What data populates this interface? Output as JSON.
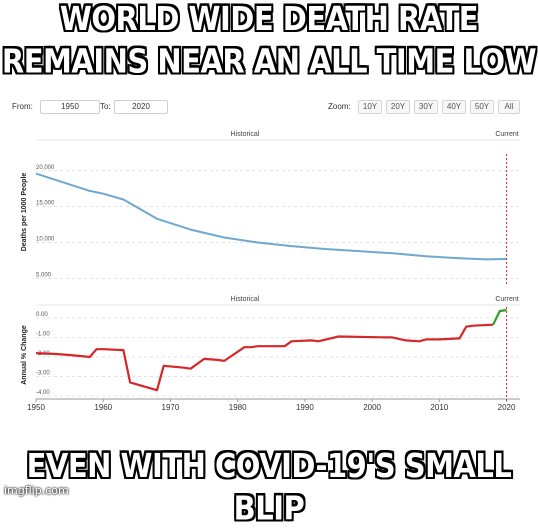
{
  "meme": {
    "top_caption_line1": "WORLD WIDE DEATH RATE",
    "top_caption_line2": "REMAINS NEAR AN ALL TIME LOW",
    "bottom_caption": "EVEN WITH COVID-19'S SMALL BLIP",
    "watermark": "imgflip.com"
  },
  "controls": {
    "from_label": "From:",
    "from_value": "1950",
    "to_label": "To:",
    "to_value": "2020",
    "zoom_label": "Zoom:",
    "zoom_options": [
      "10Y",
      "20Y",
      "30Y",
      "40Y",
      "50Y",
      "All"
    ]
  },
  "colors": {
    "rate_line": "#6fa8cf",
    "change_line": "#d62728",
    "change_line_recent": "#2ca02c",
    "current_marker": "#d62728"
  },
  "chart_data": [
    {
      "type": "line",
      "header_left": "Historical",
      "header_right": "Current",
      "ylabel": "Deaths per 1000 People",
      "ylim": [
        4.5,
        21.5
      ],
      "yticks": [
        5,
        10,
        15,
        20
      ],
      "ytick_labels": [
        "5.000",
        "10.000",
        "15.000",
        "20.000"
      ],
      "xlim": [
        1950,
        2022
      ],
      "current_year": 2020,
      "series": [
        {
          "x": [
            1950,
            1955,
            1958,
            1960,
            1963,
            1968,
            1973,
            1978,
            1983,
            1988,
            1993,
            1998,
            2003,
            2008,
            2013,
            2017,
            2020
          ],
          "values": [
            19.6,
            18.1,
            17.2,
            16.8,
            16.0,
            13.3,
            11.8,
            10.7,
            10.0,
            9.5,
            9.1,
            8.8,
            8.5,
            8.1,
            7.8,
            7.65,
            7.7
          ]
        }
      ]
    },
    {
      "type": "line",
      "header_left": "Historical",
      "header_right": "Current",
      "ylabel": "Annual % Change",
      "ylim": [
        -4.15,
        0.25
      ],
      "yticks": [
        0,
        -1,
        -2,
        -3,
        -4
      ],
      "ytick_labels": [
        "0.00",
        "-1.00",
        "-2.00",
        "-3.00",
        "-4.00"
      ],
      "xlim": [
        1950,
        2022
      ],
      "xticks": [
        1950,
        1960,
        1970,
        1980,
        1990,
        2000,
        2010,
        2020
      ],
      "xtick_labels": [
        "1950",
        "1960",
        "1970",
        "1980",
        "1990",
        "2000",
        "2010",
        "2020"
      ],
      "current_year": 2020,
      "series": [
        {
          "x": [
            1950,
            1953,
            1955,
            1958,
            1959,
            1960,
            1963,
            1964,
            1968,
            1969,
            1972,
            1973,
            1975,
            1977,
            1978,
            1981,
            1982,
            1983,
            1987,
            1988,
            1991,
            1992,
            1995,
            2002,
            2003,
            2005,
            2007,
            2008,
            2010,
            2013,
            2014,
            2015,
            2018
          ],
          "values": [
            -1.8,
            -1.85,
            -1.9,
            -2.0,
            -1.6,
            -1.6,
            -1.65,
            -3.3,
            -3.7,
            -2.45,
            -2.55,
            -2.6,
            -2.1,
            -2.15,
            -2.2,
            -1.5,
            -1.5,
            -1.45,
            -1.45,
            -1.2,
            -1.15,
            -1.2,
            -0.95,
            -1.0,
            -1.0,
            -1.15,
            -1.2,
            -1.1,
            -1.1,
            -1.05,
            -0.45,
            -0.4,
            -0.35
          ]
        },
        {
          "x": [
            2018,
            2019,
            2020
          ],
          "values": [
            -0.35,
            0.35,
            0.4
          ]
        }
      ]
    }
  ]
}
